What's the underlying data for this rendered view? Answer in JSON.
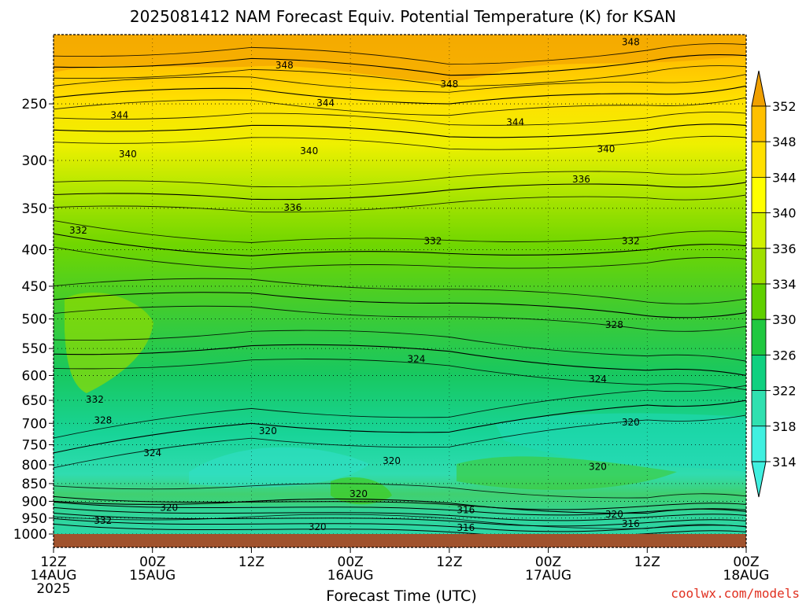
{
  "chart_data": {
    "type": "heatmap",
    "title": "2025081412 NAM Forecast Equiv. Potential Temperature (K) for KSAN",
    "xlabel": "Forecast Time (UTC)",
    "ylabel": "",
    "x_ticks": [
      {
        "hour": 0,
        "line1": "12Z",
        "line2": "14AUG",
        "line3": "2025"
      },
      {
        "hour": 12,
        "line1": "00Z",
        "line2": "15AUG",
        "line3": ""
      },
      {
        "hour": 24,
        "line1": "12Z",
        "line2": "",
        "line3": ""
      },
      {
        "hour": 36,
        "line1": "00Z",
        "line2": "16AUG",
        "line3": ""
      },
      {
        "hour": 48,
        "line1": "12Z",
        "line2": "",
        "line3": ""
      },
      {
        "hour": 60,
        "line1": "00Z",
        "line2": "17AUG",
        "line3": ""
      },
      {
        "hour": 72,
        "line1": "12Z",
        "line2": "",
        "line3": ""
      },
      {
        "hour": 84,
        "line1": "00Z",
        "line2": "18AUG",
        "line3": ""
      }
    ],
    "xlim": [
      0,
      84
    ],
    "y_ticks": [
      250,
      300,
      350,
      400,
      450,
      500,
      550,
      600,
      650,
      700,
      750,
      800,
      850,
      900,
      950,
      1000
    ],
    "ylim": [
      200,
      1000
    ],
    "y_scale": "log",
    "grid": true,
    "colorbar": {
      "labels": [
        352,
        348,
        344,
        340,
        336,
        334,
        330,
        326,
        322,
        318,
        314
      ],
      "colors": [
        "#f0a000",
        "#ffc000",
        "#ffe000",
        "#ffff00",
        "#d0f000",
        "#a0e000",
        "#60d000",
        "#20c840",
        "#10d080",
        "#30e0b0",
        "#40f0e0"
      ]
    },
    "ground_color": "#a0522d",
    "isotherms": [
      {
        "level": 348,
        "values": [
          [
            0,
            222
          ],
          [
            24,
            216
          ],
          [
            48,
            228
          ],
          [
            72,
            218
          ],
          [
            84,
            214
          ]
        ]
      },
      {
        "level": 344,
        "values": [
          [
            0,
            245
          ],
          [
            24,
            238
          ],
          [
            48,
            250
          ],
          [
            72,
            242
          ],
          [
            84,
            236
          ]
        ]
      },
      {
        "level": 340,
        "values": [
          [
            0,
            272
          ],
          [
            24,
            268
          ],
          [
            48,
            278
          ],
          [
            72,
            272
          ],
          [
            84,
            268
          ]
        ]
      },
      {
        "level": 336,
        "values": [
          [
            0,
            335
          ],
          [
            24,
            340
          ],
          [
            48,
            330
          ],
          [
            72,
            325
          ],
          [
            84,
            322
          ]
        ]
      },
      {
        "level": 332,
        "values": [
          [
            0,
            380
          ],
          [
            24,
            408
          ],
          [
            48,
            405
          ],
          [
            72,
            400
          ],
          [
            84,
            395
          ]
        ]
      },
      {
        "level": 328,
        "values": [
          [
            0,
            470
          ],
          [
            24,
            460
          ],
          [
            48,
            475
          ],
          [
            72,
            495
          ],
          [
            84,
            490
          ]
        ]
      },
      {
        "level": 324,
        "values": [
          [
            0,
            560
          ],
          [
            24,
            545
          ],
          [
            48,
            555
          ],
          [
            72,
            590
          ],
          [
            84,
            600
          ]
        ]
      },
      {
        "level": 320,
        "values": [
          [
            0,
            770
          ],
          [
            24,
            700
          ],
          [
            48,
            720
          ],
          [
            72,
            660
          ],
          [
            84,
            650
          ]
        ]
      },
      {
        "level": 316,
        "values": [
          [
            0,
            900
          ],
          [
            24,
            900
          ],
          [
            48,
            905
          ],
          [
            72,
            935
          ],
          [
            84,
            930
          ]
        ]
      }
    ],
    "contour_labels": [
      {
        "text": "348",
        "hour": 28,
        "p": 223
      },
      {
        "text": "348",
        "hour": 48,
        "p": 237
      },
      {
        "text": "348",
        "hour": 70,
        "p": 207
      },
      {
        "text": "344",
        "hour": 8,
        "p": 262
      },
      {
        "text": "344",
        "hour": 33,
        "p": 252
      },
      {
        "text": "344",
        "hour": 56,
        "p": 268
      },
      {
        "text": "340",
        "hour": 9,
        "p": 297
      },
      {
        "text": "340",
        "hour": 31,
        "p": 294
      },
      {
        "text": "340",
        "hour": 67,
        "p": 292
      },
      {
        "text": "336",
        "hour": 29,
        "p": 353
      },
      {
        "text": "336",
        "hour": 64,
        "p": 322
      },
      {
        "text": "332",
        "hour": 3,
        "p": 380
      },
      {
        "text": "332",
        "hour": 46,
        "p": 393
      },
      {
        "text": "332",
        "hour": 70,
        "p": 393
      },
      {
        "text": "328",
        "hour": 68,
        "p": 515
      },
      {
        "text": "324",
        "hour": 44,
        "p": 575
      },
      {
        "text": "324",
        "hour": 66,
        "p": 613
      },
      {
        "text": "320",
        "hour": 70,
        "p": 705
      },
      {
        "text": "320",
        "hour": 26,
        "p": 725
      },
      {
        "text": "320",
        "hour": 41,
        "p": 798
      },
      {
        "text": "320",
        "hour": 66,
        "p": 813
      },
      {
        "text": "320",
        "hour": 37,
        "p": 888
      },
      {
        "text": "320",
        "hour": 14,
        "p": 928
      },
      {
        "text": "320",
        "hour": 32,
        "p": 988
      },
      {
        "text": "320",
        "hour": 68,
        "p": 948
      },
      {
        "text": "316",
        "hour": 50,
        "p": 935
      },
      {
        "text": "316",
        "hour": 70,
        "p": 978
      },
      {
        "text": "316",
        "hour": 50,
        "p": 1012
      },
      {
        "text": "332",
        "hour": 5,
        "p": 655
      },
      {
        "text": "328",
        "hour": 6,
        "p": 700
      },
      {
        "text": "324",
        "hour": 12,
        "p": 778
      },
      {
        "text": "332",
        "hour": 6,
        "p": 968
      }
    ]
  },
  "credit": "coolwx.com/models"
}
